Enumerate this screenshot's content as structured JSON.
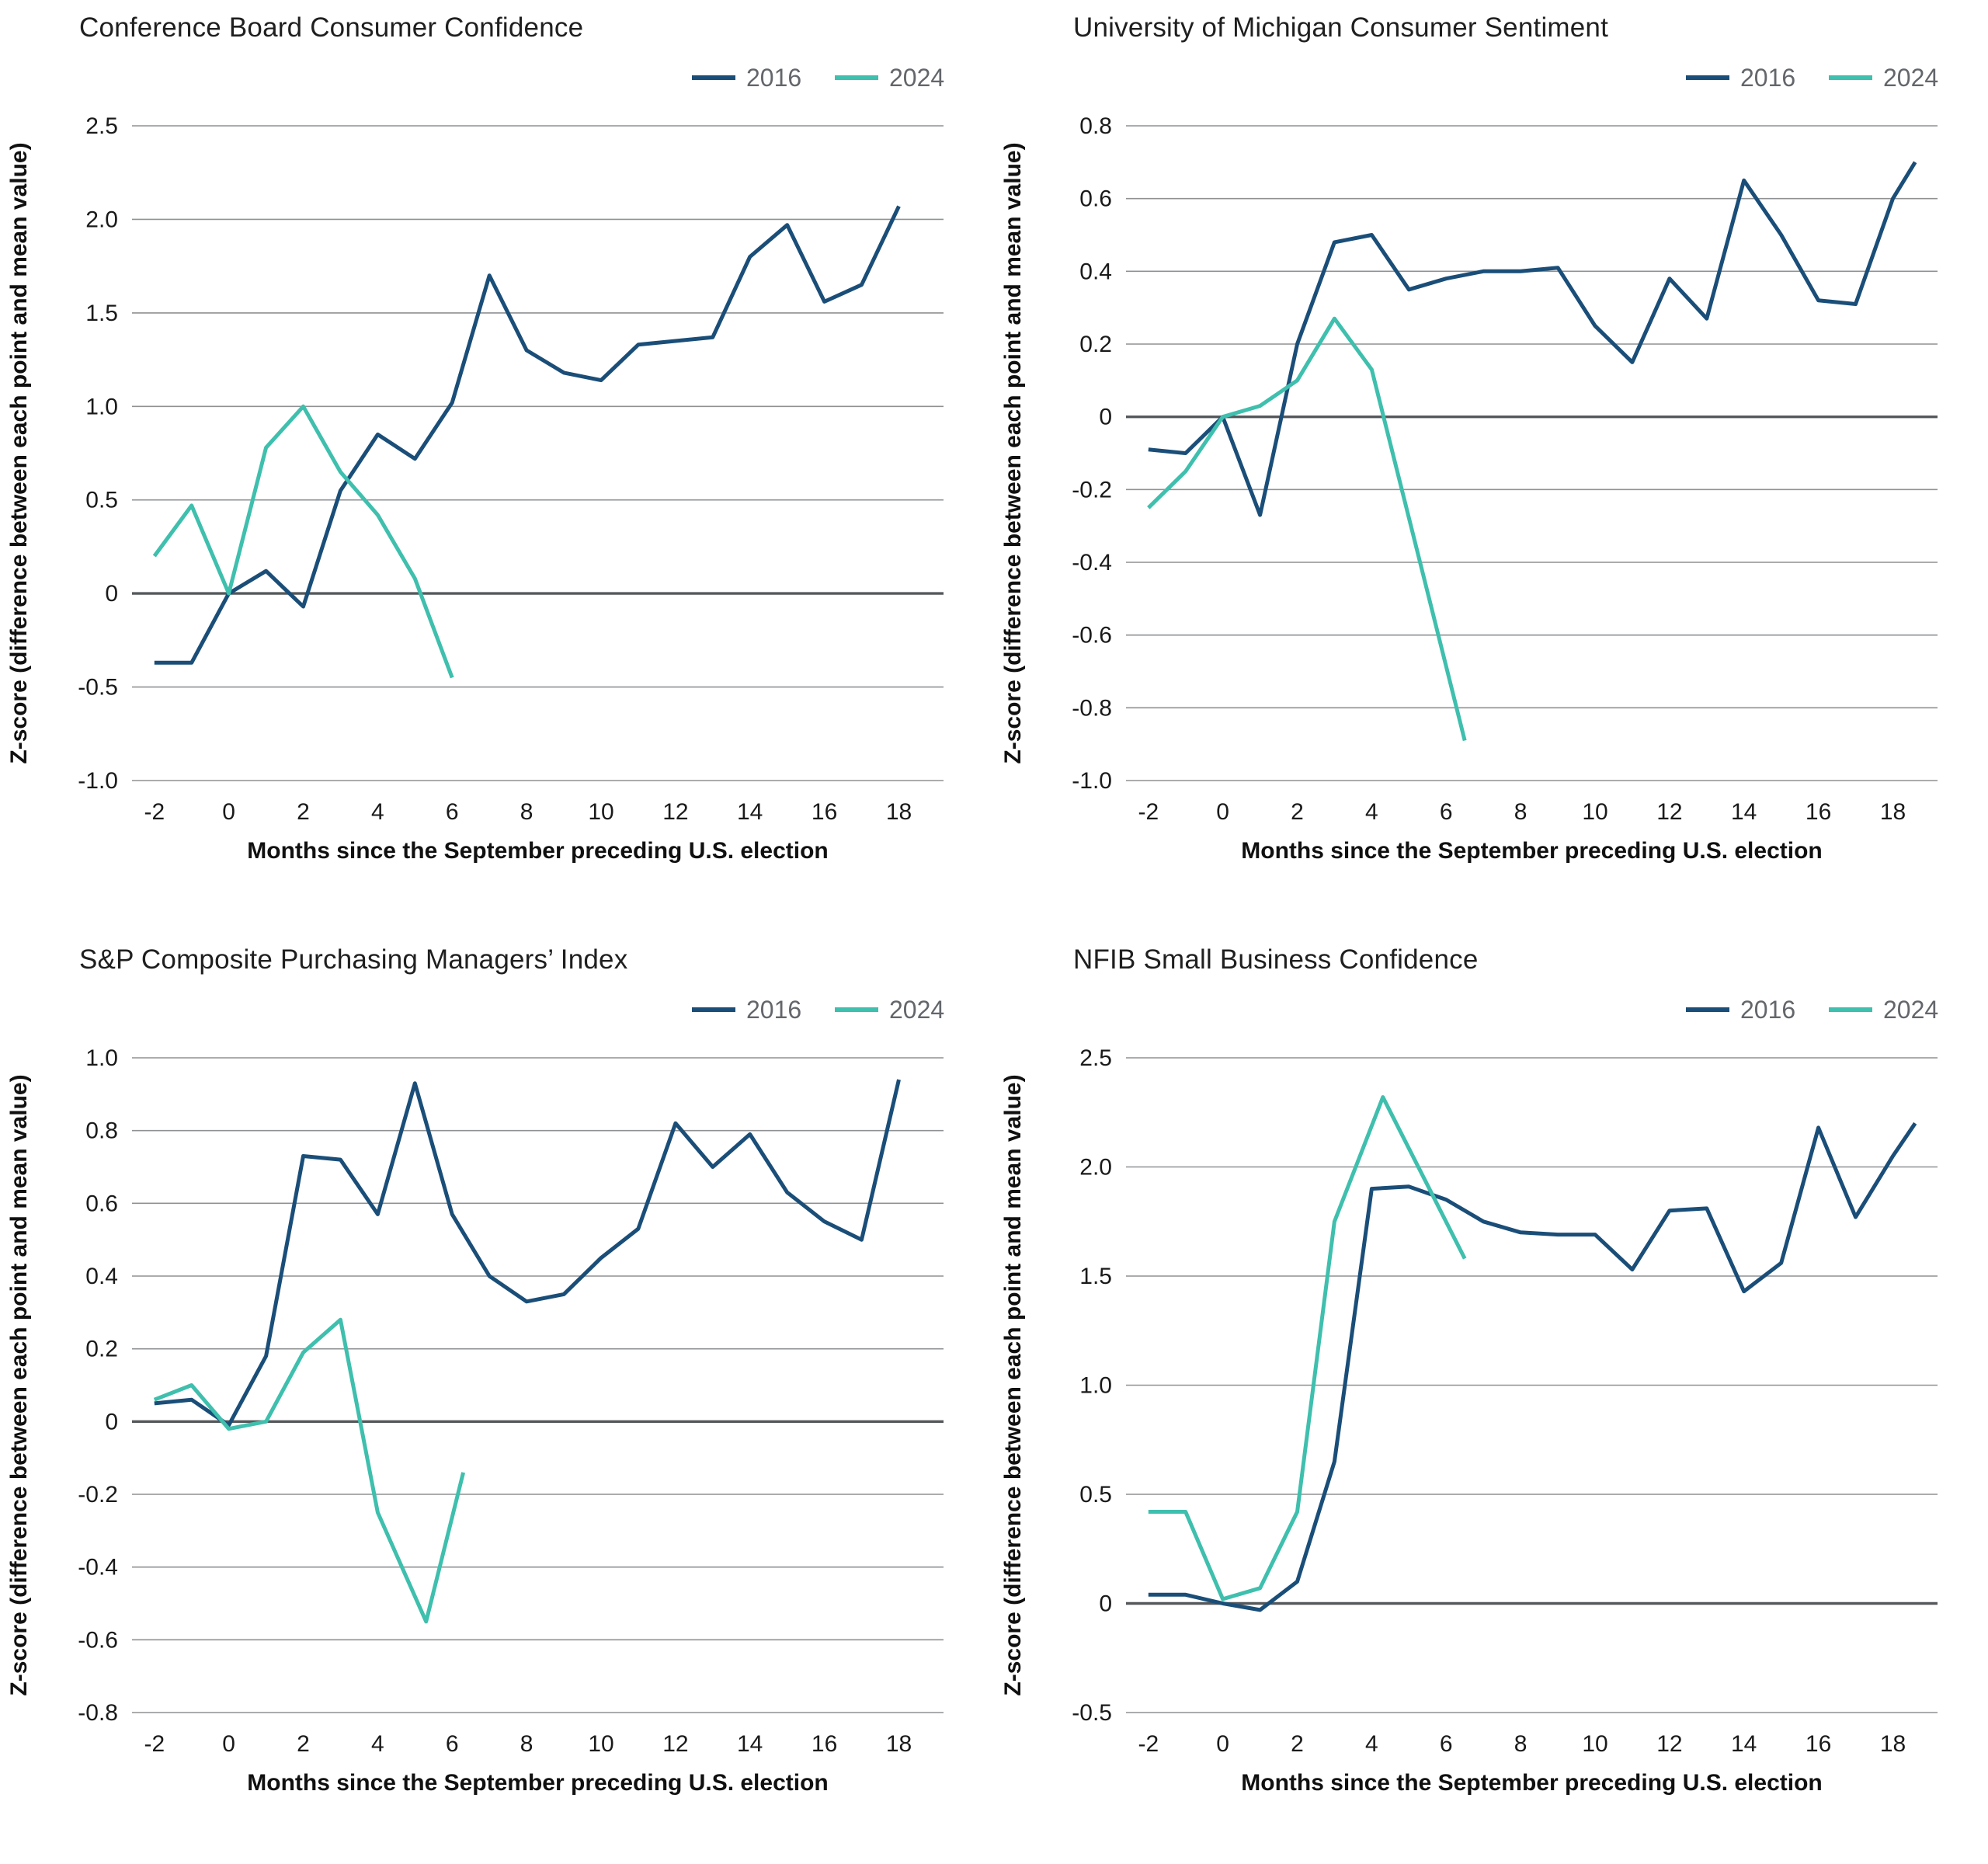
{
  "chart_data": [
    {
      "type": "line",
      "title": "Conference Board Consumer Confidence",
      "xlabel": "Months since the September preceding U.S. election",
      "ylabel": "Z-score (difference between each point and mean value)",
      "xlim": [
        -2.6,
        19.2
      ],
      "ylim": [
        -1.0,
        2.5
      ],
      "xticks": [
        -2,
        0,
        2,
        4,
        6,
        8,
        10,
        12,
        14,
        16,
        18
      ],
      "yticks": [
        2.5,
        2.0,
        1.5,
        1.0,
        0.5,
        0,
        -0.5,
        -1.0
      ],
      "grid": "horizontal",
      "legend_position": "top-right",
      "series": [
        {
          "name": "2016",
          "color": "#1a4e78",
          "x": [
            -2,
            -1,
            0,
            1,
            2,
            3,
            4,
            5,
            6,
            7,
            8,
            9,
            10,
            11,
            12,
            13,
            14,
            15,
            16,
            17,
            18
          ],
          "y": [
            -0.37,
            -0.37,
            0.0,
            0.12,
            -0.07,
            0.55,
            0.85,
            0.72,
            1.02,
            1.7,
            1.3,
            1.18,
            1.14,
            1.33,
            1.35,
            1.37,
            1.8,
            1.97,
            1.56,
            1.65,
            2.07
          ]
        },
        {
          "name": "2024",
          "color": "#3fbfad",
          "x": [
            -2,
            -1,
            0,
            1,
            2,
            3,
            4,
            5,
            6
          ],
          "y": [
            0.2,
            0.47,
            0.0,
            0.78,
            1.0,
            0.65,
            0.42,
            0.08,
            -0.45
          ]
        }
      ]
    },
    {
      "type": "line",
      "title": "University of Michigan Consumer Sentiment",
      "xlabel": "Months since the September preceding U.S. election",
      "ylabel": "Z-score (difference between each point and mean value)",
      "xlim": [
        -2.6,
        19.2
      ],
      "ylim": [
        -1.0,
        0.8
      ],
      "xticks": [
        -2,
        0,
        2,
        4,
        6,
        8,
        10,
        12,
        14,
        16,
        18
      ],
      "yticks": [
        0.8,
        0.6,
        0.4,
        0.2,
        0,
        -0.2,
        -0.4,
        -0.6,
        -0.8,
        -1.0
      ],
      "grid": "horizontal",
      "legend_position": "top-right",
      "series": [
        {
          "name": "2016",
          "color": "#1a4e78",
          "x": [
            -2,
            -1,
            0,
            1,
            2,
            3,
            4,
            5,
            6,
            7,
            8,
            9,
            10,
            11,
            12,
            13,
            14,
            15,
            16,
            17,
            18,
            18.6
          ],
          "y": [
            -0.09,
            -0.1,
            0.0,
            -0.27,
            0.2,
            0.48,
            0.5,
            0.35,
            0.38,
            0.4,
            0.4,
            0.41,
            0.25,
            0.15,
            0.38,
            0.27,
            0.65,
            0.5,
            0.32,
            0.31,
            0.6,
            0.7
          ]
        },
        {
          "name": "2024",
          "color": "#3fbfad",
          "x": [
            -2,
            -1,
            0,
            1,
            2,
            3,
            4,
            6.5
          ],
          "y": [
            -0.25,
            -0.15,
            0.0,
            0.03,
            0.1,
            0.27,
            0.13,
            -0.89
          ]
        }
      ]
    },
    {
      "type": "line",
      "title": "S&P Composite Purchasing Managers’ Index",
      "xlabel": "Months since the September preceding U.S. election",
      "ylabel": "Z-score (difference between each point and mean value)",
      "xlim": [
        -2.6,
        19.2
      ],
      "ylim": [
        -0.8,
        1.0
      ],
      "xticks": [
        -2,
        0,
        2,
        4,
        6,
        8,
        10,
        12,
        14,
        16,
        18
      ],
      "yticks": [
        1.0,
        0.8,
        0.6,
        0.4,
        0.2,
        0,
        -0.2,
        -0.4,
        -0.6,
        -0.8
      ],
      "grid": "horizontal",
      "legend_position": "top-right",
      "series": [
        {
          "name": "2016",
          "color": "#1a4e78",
          "x": [
            -2,
            -1,
            0,
            1,
            2,
            3,
            4,
            5,
            6,
            7,
            8,
            9,
            10,
            11,
            12,
            13,
            14,
            15,
            16,
            17,
            18
          ],
          "y": [
            0.05,
            0.06,
            -0.01,
            0.18,
            0.73,
            0.72,
            0.57,
            0.93,
            0.57,
            0.4,
            0.33,
            0.35,
            0.45,
            0.53,
            0.82,
            0.7,
            0.79,
            0.63,
            0.55,
            0.5,
            0.94
          ]
        },
        {
          "name": "2024",
          "color": "#3fbfad",
          "x": [
            -2,
            -1,
            0,
            1,
            2,
            3,
            4,
            5.3,
            6.3
          ],
          "y": [
            0.06,
            0.1,
            -0.02,
            0.0,
            0.19,
            0.28,
            -0.25,
            -0.55,
            -0.14
          ]
        }
      ]
    },
    {
      "type": "line",
      "title": "NFIB Small Business Confidence",
      "xlabel": "Months since the September preceding U.S. election",
      "ylabel": "Z-score (difference between each point and mean value)",
      "xlim": [
        -2.6,
        19.2
      ],
      "ylim": [
        -0.5,
        2.5
      ],
      "xticks": [
        -2,
        0,
        2,
        4,
        6,
        8,
        10,
        12,
        14,
        16,
        18
      ],
      "yticks": [
        2.5,
        2.0,
        1.5,
        1.0,
        0.5,
        0,
        -0.5
      ],
      "grid": "horizontal",
      "legend_position": "top-right",
      "series": [
        {
          "name": "2016",
          "color": "#1a4e78",
          "x": [
            -2,
            -1,
            0,
            1,
            2,
            3,
            4,
            5,
            6,
            7,
            8,
            9,
            10,
            11,
            12,
            13,
            14,
            15,
            16,
            17,
            18,
            18.6
          ],
          "y": [
            0.04,
            0.04,
            0.0,
            -0.03,
            0.1,
            0.65,
            1.9,
            1.91,
            1.85,
            1.75,
            1.7,
            1.69,
            1.69,
            1.53,
            1.8,
            1.81,
            1.43,
            1.56,
            2.18,
            1.77,
            2.05,
            2.2
          ]
        },
        {
          "name": "2024",
          "color": "#3fbfad",
          "x": [
            -2,
            -1,
            0,
            1,
            2,
            3,
            4.3,
            6.5
          ],
          "y": [
            0.42,
            0.42,
            0.02,
            0.07,
            0.42,
            1.75,
            2.32,
            1.58
          ]
        }
      ]
    }
  ]
}
